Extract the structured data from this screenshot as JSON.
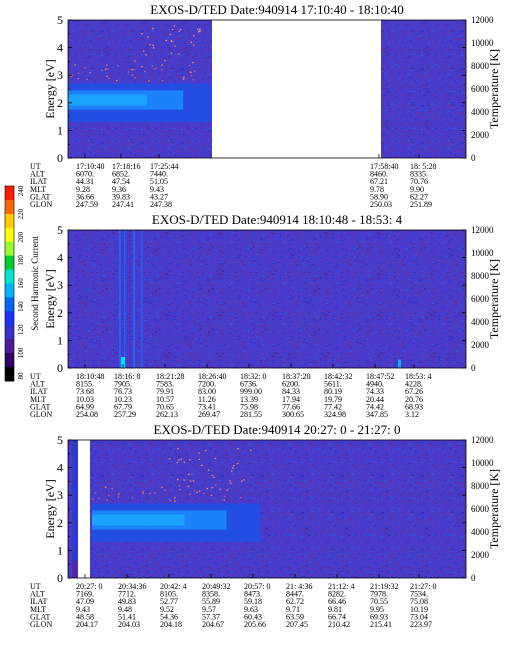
{
  "colorbar": {
    "label": "Second Harmonic Current",
    "ticks": [
      "240",
      "220",
      "200",
      "180",
      "160",
      "140",
      "120",
      "100",
      "80"
    ],
    "colors": [
      "#ff1a00",
      "#ff6600",
      "#ffcc00",
      "#ffff00",
      "#99ff33",
      "#00cc33",
      "#00e6cc",
      "#00b3ff",
      "#0066ff",
      "#1a33ff",
      "#3333cc",
      "#4d1a99",
      "#330066",
      "#000000"
    ]
  },
  "chart_data": [
    {
      "type": "heatmap",
      "title": "EXOS-D/TED   Date:940914  17:10:40 - 18:10:40",
      "ylabel": "Energy [eV]",
      "y2label": "Temperature [K]",
      "ylim": [
        0,
        5
      ],
      "y2lim": [
        0,
        12000
      ],
      "yticks": [
        "0",
        "1",
        "2",
        "3",
        "4",
        "5"
      ],
      "y2ticks": [
        "0",
        "2000",
        "4000",
        "6000",
        "8000",
        "10000",
        "12000"
      ],
      "data_gap": "17:25:44 - 17:58:40",
      "orbit_rows": [
        "UT",
        "ALT",
        "ILAT",
        "MLT",
        "GLAT",
        "GLON"
      ],
      "orbit_columns": [
        [
          "17:10:40",
          "6070.",
          "44.31",
          "9.28",
          "36.66",
          "247.59"
        ],
        [
          "17:18:16",
          "6852.",
          "47.54",
          "9.36",
          "39.83",
          "247.41"
        ],
        [
          "17:25:44",
          "7440.",
          "51.05",
          "9.43",
          "43.27",
          "247.38"
        ],
        [
          "17:58:40",
          "8460.",
          "67.21",
          "9.78",
          "58.90",
          "250.03"
        ],
        [
          "18: 5:28",
          "8335.",
          "70.76",
          "9.90",
          "62.27",
          "251.89"
        ]
      ]
    },
    {
      "type": "heatmap",
      "title": "EXOS-D/TED   Date:940914  18:10:48 - 18:53: 4",
      "ylabel": "Energy [eV]",
      "y2label": "Temperature [K]",
      "ylim": [
        0,
        5
      ],
      "y2lim": [
        0,
        12000
      ],
      "yticks": [
        "0",
        "1",
        "2",
        "3",
        "4",
        "5"
      ],
      "y2ticks": [
        "0",
        "2000",
        "4000",
        "6000",
        "8000",
        "10000",
        "12000"
      ],
      "orbit_rows": [
        "UT",
        "ALT",
        "ILAT",
        "MLT",
        "GLAT",
        "GLON"
      ],
      "orbit_columns": [
        [
          "18:10:48",
          "8155.",
          "73.68",
          "10.03",
          "64.99",
          "254.08"
        ],
        [
          "18:16: 8",
          "7905.",
          "76.73",
          "10.23",
          "67.79",
          "257.29"
        ],
        [
          "18:21:28",
          "7583.",
          "79.91",
          "10.57",
          "70.65",
          "262.13"
        ],
        [
          "18:26:40",
          "7200.",
          "83.00",
          "11.26",
          "73.41",
          "269.47"
        ],
        [
          "18:32: 0",
          "6736.",
          "999.00",
          "13.39",
          "75.98",
          "281.55"
        ],
        [
          "18:37:20",
          "6200.",
          "84.33",
          "17.94",
          "77.66",
          "300.65"
        ],
        [
          "18:42:32",
          "5611.",
          "80.19",
          "19.79",
          "77.42",
          "324.98"
        ],
        [
          "18:47:52",
          "4940.",
          "74.33",
          "20.44",
          "74.42",
          "347.85"
        ],
        [
          "18:53: 4",
          "4228.",
          "67.26",
          "20.76",
          "68.93",
          "3.12"
        ]
      ]
    },
    {
      "type": "heatmap",
      "title": "EXOS-D/TED   Date:940914  20:27: 0 - 21:27: 0",
      "ylabel": "Energy [eV]",
      "y2label": "Temperature [K]",
      "ylim": [
        0,
        5
      ],
      "y2lim": [
        0,
        12000
      ],
      "yticks": [
        "0",
        "1",
        "2",
        "3",
        "4",
        "5"
      ],
      "y2ticks": [
        "0",
        "2000",
        "4000",
        "6000",
        "8000",
        "10000",
        "12000"
      ],
      "orbit_rows": [
        "UT",
        "ALT",
        "ILAT",
        "MLT",
        "GLAT",
        "GLON"
      ],
      "orbit_columns": [
        [
          "20:27: 0",
          "7169.",
          "47.09",
          "9.43",
          "48.58",
          "204.17"
        ],
        [
          "20:34:36",
          "7712.",
          "49.83",
          "9.48",
          "51.41",
          "204.03"
        ],
        [
          "20:42: 4",
          "8105.",
          "52.77",
          "9.52",
          "54.36",
          "204.18"
        ],
        [
          "20:49:32",
          "8358.",
          "55.89",
          "9.57",
          "57.37",
          "204.67"
        ],
        [
          "20:57: 0",
          "8473.",
          "59.18",
          "9.63",
          "60.43",
          "205.66"
        ],
        [
          "21: 4:36",
          "8447.",
          "62.72",
          "9.71",
          "63.59",
          "207.45"
        ],
        [
          "21:12: 4",
          "8282.",
          "66.46",
          "9.81",
          "66.74",
          "210.42"
        ],
        [
          "21:19:32",
          "7978.",
          "70.55",
          "9.95",
          "69.93",
          "215.41"
        ],
        [
          "21:27: 0",
          "7534.",
          "75.08",
          "10.19",
          "73.04",
          "223.97"
        ]
      ]
    }
  ]
}
